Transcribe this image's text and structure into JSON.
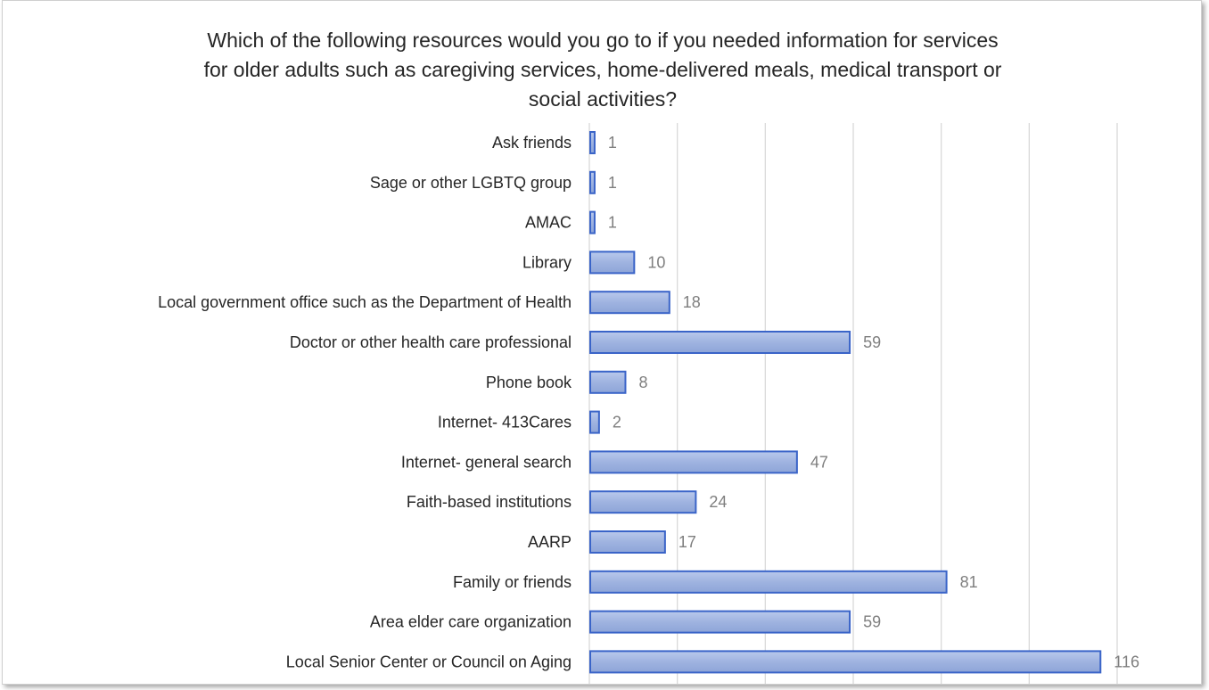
{
  "chart_data": {
    "type": "bar",
    "orientation": "horizontal",
    "title": "Which of the following resources would you go to if you needed information for services\nfor older adults such as caregiving services, home-delivered meals, medical transport or\nsocial activities?",
    "categories": [
      "Ask friends",
      "Sage or other LGBTQ group",
      "AMAC",
      "Library",
      "Local government office such as the Department of Health",
      "Doctor or other health care professional",
      "Phone book",
      "Internet- 413Cares",
      "Internet- general search",
      "Faith-based institutions",
      "AARP",
      "Family or friends",
      "Area elder care organization",
      "Local Senior Center or Council on Aging"
    ],
    "values": [
      1,
      1,
      1,
      10,
      18,
      59,
      8,
      2,
      47,
      24,
      17,
      81,
      59,
      116
    ],
    "xlim": [
      0,
      120
    ],
    "x_gridline_step": 20,
    "grid": "vertical",
    "legend": "none",
    "bar_fill": "#a0b4e0",
    "bar_edge": "#3a64c8",
    "value_label_color": "#7f7f7f",
    "grid_color": "#d9d9d9"
  }
}
